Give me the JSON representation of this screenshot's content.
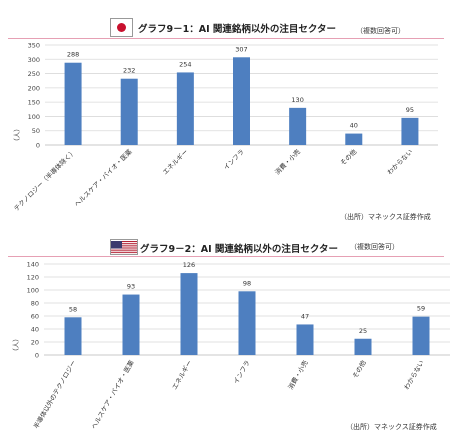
{
  "chart_data": [
    {
      "type": "bar",
      "title": "グラフ9－1：AI 関連銘柄以外の注目セクター",
      "note": "（複数回答可）",
      "flag": "japan-flag",
      "ylabel": "（人）",
      "ylim": [
        0,
        350
      ],
      "yticks": [
        0,
        50,
        100,
        150,
        200,
        250,
        300,
        350
      ],
      "grid": true,
      "categories": [
        "テクノロジー（半導体除く）",
        "ヘルスケア・バイオ・医薬",
        "エネルギー",
        "インフラ",
        "消費・小売",
        "その他",
        "わからない"
      ],
      "values": [
        288,
        232,
        254,
        307,
        130,
        40,
        95
      ],
      "source": "（出所）マネックス証券作成",
      "bar_color": "#4e7fc0"
    },
    {
      "type": "bar",
      "title": "グラフ9－2：AI 関連銘柄以外の注目セクター",
      "note": "（複数回答可）",
      "flag": "us-flag",
      "ylabel": "（人）",
      "ylim": [
        0,
        140
      ],
      "yticks": [
        0,
        20,
        40,
        60,
        80,
        100,
        120,
        140
      ],
      "grid": true,
      "categories": [
        "半導体以外のテクノロジー",
        "ヘルスケア・バイオ・医薬",
        "エネルギー",
        "インフラ",
        "消費・小売",
        "その他",
        "わからない"
      ],
      "values": [
        58,
        93,
        126,
        98,
        47,
        25,
        59
      ],
      "source": "（出所）マネックス証券作成",
      "bar_color": "#4e7fc0"
    }
  ]
}
